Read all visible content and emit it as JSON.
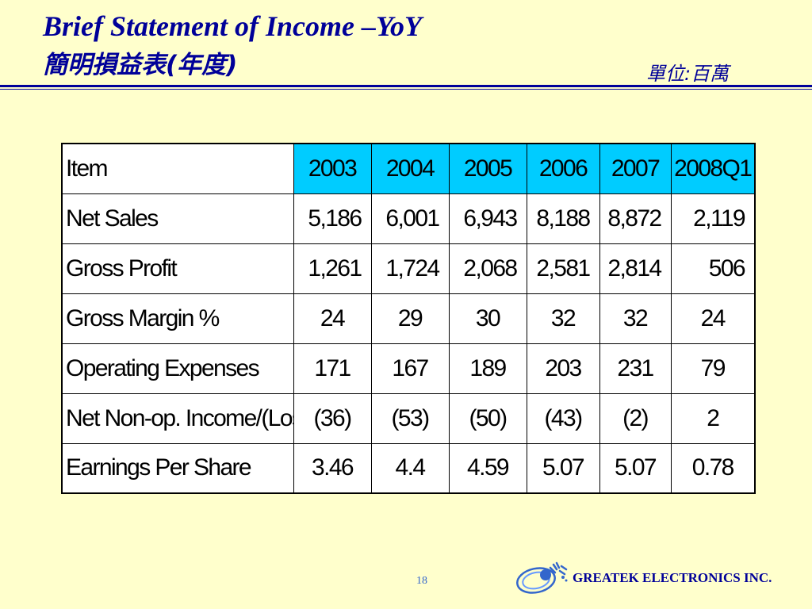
{
  "title": {
    "english": "Brief Statement of Income –YoY",
    "chinese": "簡明損益表(年度)",
    "unit": "單位:百萬"
  },
  "table": {
    "header": [
      "Item",
      "2003",
      "2004",
      "2005",
      "2006",
      "2007",
      "2008Q1"
    ],
    "rows": [
      {
        "label": "Net Sales",
        "values": [
          "5,186",
          "6,001",
          "6,943",
          "8,188",
          "8,872",
          "2,119"
        ]
      },
      {
        "label": "Gross Profit",
        "values": [
          "1,261",
          "1,724",
          "2,068",
          "2,581",
          "2,814",
          "506"
        ]
      },
      {
        "label": "Gross Margin %",
        "values": [
          "24",
          "29",
          "30",
          "32",
          "32",
          "24"
        ]
      },
      {
        "label": "Operating Expenses",
        "values": [
          "171",
          "167",
          "189",
          "203",
          "231",
          "79"
        ]
      },
      {
        "label": "Net Non-op. Income/(Loss",
        "values": [
          "(36)",
          "(53)",
          "(50)",
          "(43)",
          "(2)",
          "2"
        ]
      },
      {
        "label": "Earnings Per Share",
        "values": [
          "3.46",
          "4.4",
          "4.59",
          "5.07",
          "5.07",
          "0.78"
        ]
      }
    ]
  },
  "footer": {
    "page_number": "18",
    "company": "GREATEK ELECTRONICS INC."
  },
  "colors": {
    "background": "#ffffcc",
    "title": "#000099",
    "header_fill": "#00ccff",
    "page_number": "#3366cc"
  }
}
